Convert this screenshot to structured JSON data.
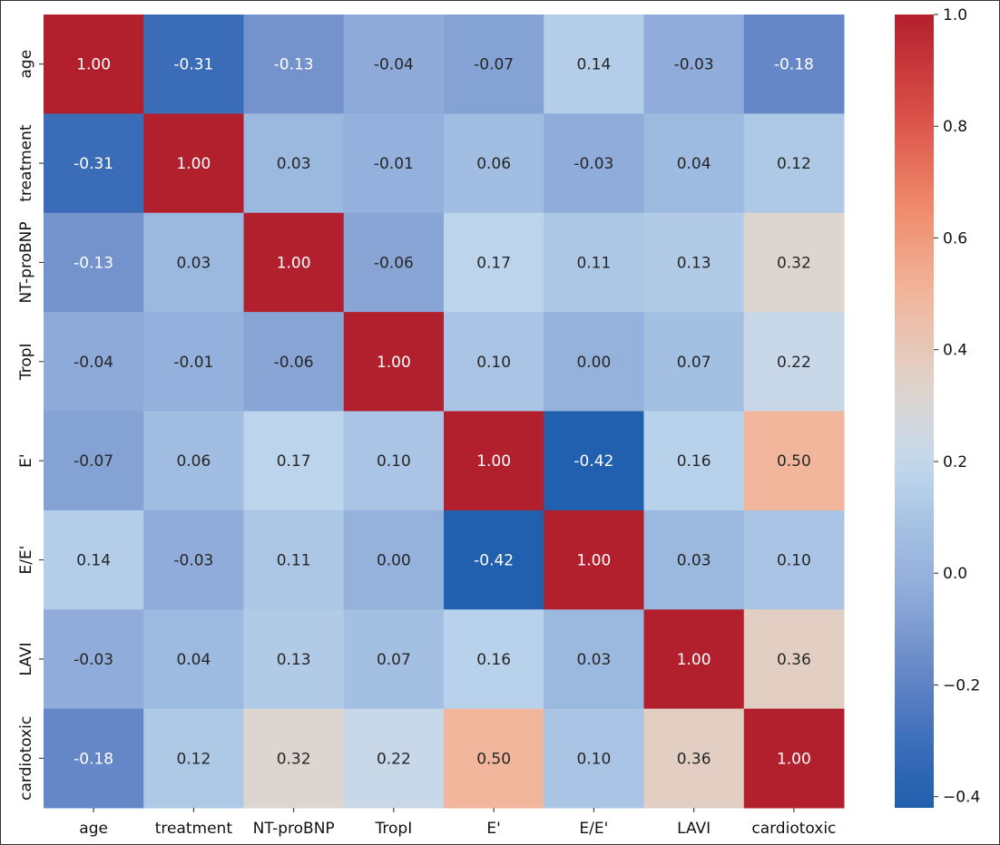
{
  "chart_data": {
    "type": "heatmap",
    "title": "",
    "xlabel": "",
    "ylabel": "",
    "categories": [
      "age",
      "treatment",
      "NT-proBNP",
      "TropI",
      "E'",
      "E/E'",
      "LAVI",
      "cardiotoxic"
    ],
    "values": [
      [
        1.0,
        -0.31,
        -0.13,
        -0.04,
        -0.07,
        0.14,
        -0.03,
        -0.18
      ],
      [
        -0.31,
        1.0,
        0.03,
        -0.01,
        0.06,
        -0.03,
        0.04,
        0.12
      ],
      [
        -0.13,
        0.03,
        1.0,
        -0.06,
        0.17,
        0.11,
        0.13,
        0.32
      ],
      [
        -0.04,
        -0.01,
        -0.06,
        1.0,
        0.1,
        0.0,
        0.07,
        0.22
      ],
      [
        -0.07,
        0.06,
        0.17,
        0.1,
        1.0,
        -0.42,
        0.16,
        0.5
      ],
      [
        0.14,
        -0.03,
        0.11,
        0.0,
        -0.42,
        1.0,
        0.03,
        0.1
      ],
      [
        -0.03,
        0.04,
        0.13,
        0.07,
        0.16,
        0.03,
        1.0,
        0.36
      ],
      [
        -0.18,
        0.12,
        0.32,
        0.22,
        0.5,
        0.1,
        0.36,
        1.0
      ]
    ],
    "annotation_format": "0.00",
    "colormap": "coolwarm",
    "colorbar": {
      "range": [
        -0.42,
        1.0
      ],
      "ticks": [
        -0.4,
        -0.2,
        0.0,
        0.2,
        0.4,
        0.6,
        0.8,
        1.0
      ],
      "tick_labels": [
        "−0.4",
        "−0.2",
        "0.0",
        "0.2",
        "0.4",
        "0.6",
        "0.8",
        "1.0"
      ],
      "placement": "right"
    },
    "colors": {
      "low": "#2160ae",
      "mid": "#dcd5d0",
      "high": "#b3202d"
    }
  }
}
